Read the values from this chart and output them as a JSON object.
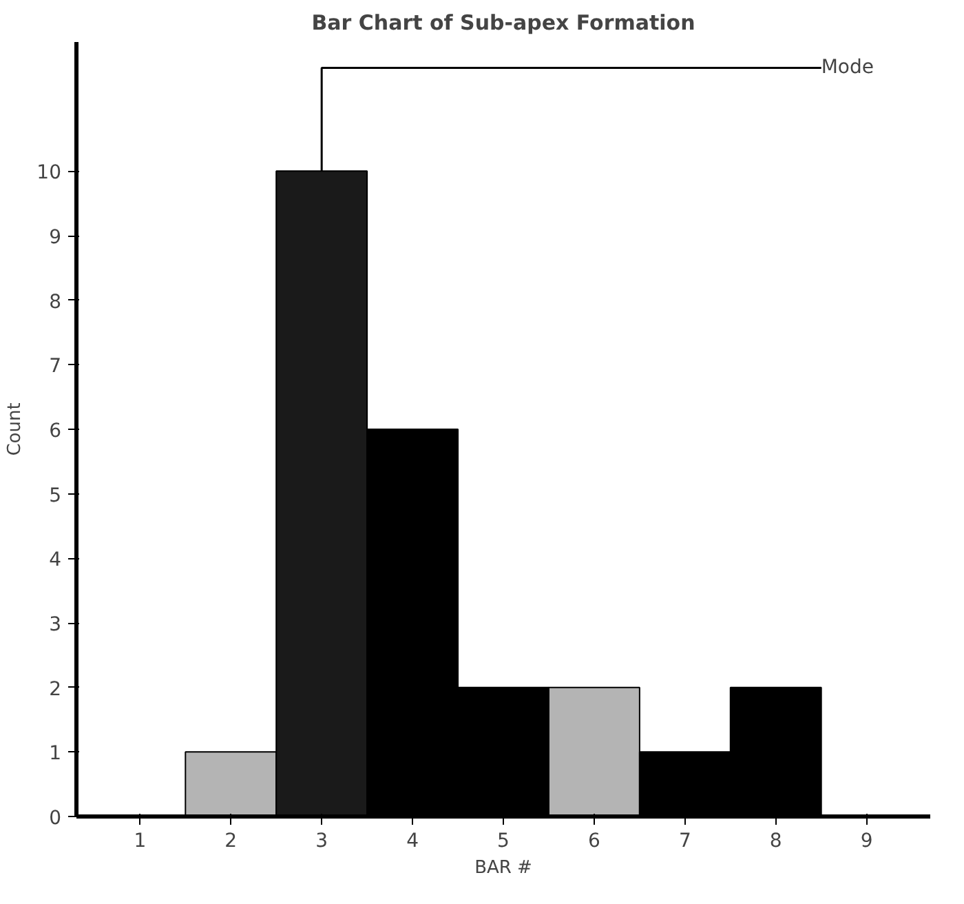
{
  "chart_data": {
    "type": "bar",
    "title": "Bar Chart of Sub-apex Formation",
    "xlabel": "BAR #",
    "ylabel": "Count",
    "categories": [
      "1",
      "2",
      "3",
      "4",
      "5",
      "6",
      "7",
      "8",
      "9"
    ],
    "values": [
      0,
      1,
      10,
      6,
      2,
      2,
      1,
      2,
      0
    ],
    "colors": [
      "#000000",
      "#b4b4b4",
      "#1a1a1a",
      "#000000",
      "#000000",
      "#b4b4b4",
      "#000000",
      "#000000",
      "#000000"
    ],
    "ylim": [
      0,
      12
    ],
    "yticks": [
      0,
      1,
      2,
      3,
      4,
      5,
      6,
      7,
      8,
      9,
      10
    ],
    "annotations": [
      {
        "text": "Mode",
        "x": "3",
        "y": 10
      }
    ]
  }
}
